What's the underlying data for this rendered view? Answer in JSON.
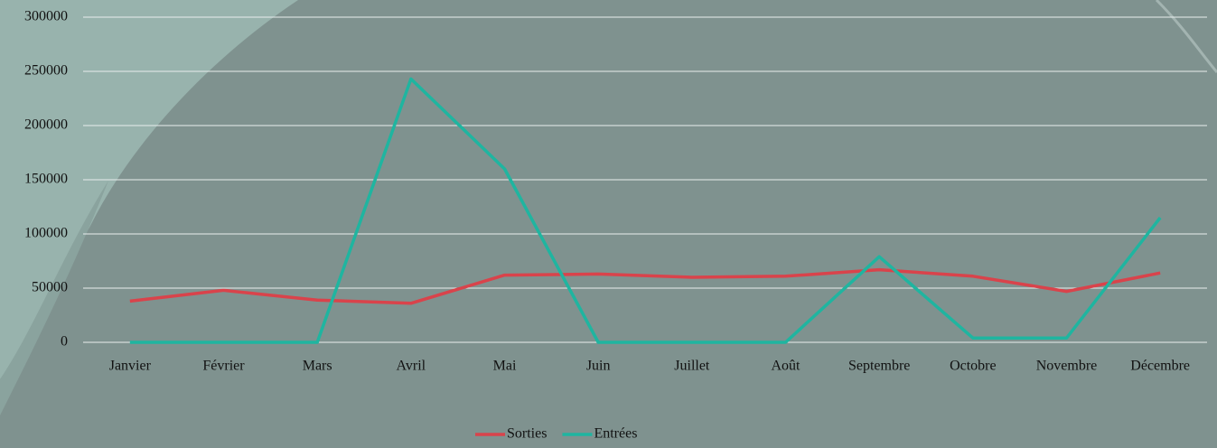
{
  "chart_data": {
    "type": "line",
    "categories": [
      "Janvier",
      "Février",
      "Mars",
      "Avril",
      "Mai",
      "Juin",
      "Juillet",
      "Août",
      "Septembre",
      "Octobre",
      "Novembre",
      "Décembre"
    ],
    "series": [
      {
        "name": "Sorties",
        "color": "#d9434b",
        "values": [
          38000,
          48000,
          39000,
          36000,
          62000,
          63000,
          60000,
          61000,
          67000,
          61000,
          47000,
          64000
        ]
      },
      {
        "name": "Entrées",
        "color": "#1fb5a0",
        "values": [
          0,
          0,
          0,
          243000,
          160000,
          0,
          0,
          0,
          79000,
          4000,
          4000,
          115000
        ]
      }
    ],
    "ylim": [
      0,
      300000
    ],
    "yticks": [
      0,
      50000,
      100000,
      150000,
      200000,
      250000,
      300000
    ],
    "grid": true,
    "legend": "bottom"
  }
}
